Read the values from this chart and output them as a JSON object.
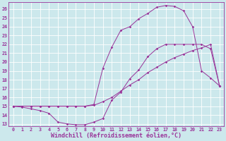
{
  "xlabel": "Windchill (Refroidissement éolien,°C)",
  "xlim": [
    -0.5,
    23.5
  ],
  "ylim": [
    12.7,
    26.8
  ],
  "xticks": [
    0,
    1,
    2,
    3,
    4,
    5,
    6,
    7,
    8,
    9,
    10,
    11,
    12,
    13,
    14,
    15,
    16,
    17,
    18,
    19,
    20,
    21,
    22,
    23
  ],
  "yticks": [
    13,
    14,
    15,
    16,
    17,
    18,
    19,
    20,
    21,
    22,
    23,
    24,
    25,
    26
  ],
  "bg_color": "#cce8ec",
  "grid_color": "#ffffff",
  "line_color": "#993399",
  "curve1_x": [
    0,
    1,
    2,
    3,
    4,
    5,
    6,
    7,
    8,
    9,
    10,
    11,
    12,
    13,
    14,
    15,
    16,
    17,
    18,
    19,
    20,
    21,
    22,
    23
  ],
  "curve1_y": [
    15.0,
    14.9,
    14.7,
    14.5,
    14.2,
    13.2,
    13.0,
    12.9,
    12.9,
    13.2,
    13.6,
    15.7,
    16.6,
    18.1,
    19.1,
    20.6,
    21.5,
    22.0,
    22.0,
    22.0,
    22.0,
    22.0,
    21.5,
    17.3
  ],
  "curve2_x": [
    0,
    1,
    2,
    3,
    4,
    5,
    6,
    7,
    8,
    9,
    10,
    11,
    12,
    13,
    14,
    15,
    16,
    17,
    18,
    19,
    20,
    21,
    22,
    23
  ],
  "curve2_y": [
    15.0,
    15.0,
    15.0,
    15.0,
    15.0,
    15.0,
    15.0,
    15.0,
    15.0,
    15.1,
    15.5,
    16.0,
    16.7,
    17.4,
    18.0,
    18.8,
    19.4,
    20.0,
    20.5,
    20.9,
    21.3,
    21.6,
    22.0,
    17.3
  ],
  "curve3_x": [
    0,
    1,
    2,
    3,
    4,
    5,
    6,
    7,
    8,
    9,
    10,
    11,
    12,
    13,
    14,
    15,
    16,
    17,
    18,
    19,
    20,
    21,
    22,
    23
  ],
  "curve3_y": [
    15.0,
    15.0,
    15.0,
    15.0,
    15.0,
    15.0,
    15.0,
    15.0,
    15.0,
    15.2,
    19.3,
    21.7,
    23.6,
    24.0,
    24.9,
    25.5,
    26.2,
    26.4,
    26.3,
    25.8,
    24.0,
    19.0,
    18.2,
    17.3
  ],
  "font_family": "monospace",
  "tick_fontsize": 4.8,
  "xlabel_fontsize": 6.0,
  "marker": "D",
  "markersize": 1.8,
  "linewidth": 0.7
}
